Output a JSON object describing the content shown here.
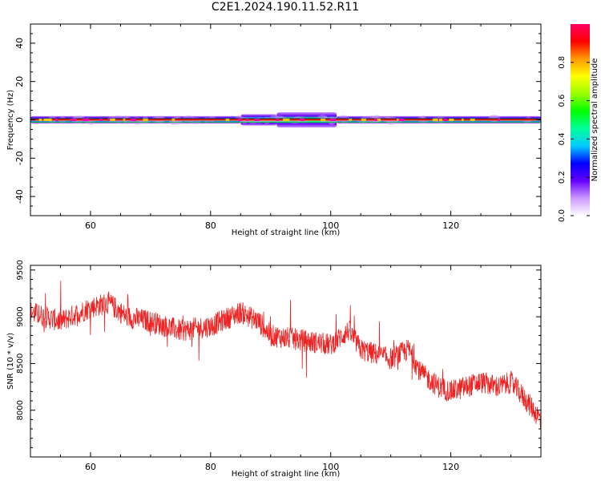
{
  "title": "C2E1.2024.190.11.52.R11",
  "chart_data": [
    {
      "type": "heatmap",
      "xlabel": "Height of straight line (km)",
      "ylabel": "Frequency (Hz)",
      "xlim": [
        50,
        135
      ],
      "ylim": [
        -50,
        50
      ],
      "xticks": [
        60,
        80,
        100,
        120
      ],
      "yticks": [
        -40,
        -20,
        0,
        20,
        40
      ],
      "colorbar": {
        "label": "Normalized spectral amplitude",
        "range": [
          0.0,
          1.0
        ],
        "ticks": [
          "0.0",
          "0.2",
          "0.4",
          "0.6",
          "0.8"
        ],
        "colors": [
          "#ffffff",
          "#cc99ff",
          "#6600ff",
          "#0000ff",
          "#00ccff",
          "#00ff99",
          "#00ff00",
          "#99ff00",
          "#ffff00",
          "#ff9900",
          "#ff0000",
          "#ff0066"
        ]
      },
      "band": {
        "center_hz": 0,
        "segments": [
          {
            "x": [
              50,
              85
            ],
            "halfwidth_hz": 2,
            "peak": 0.95
          },
          {
            "x": [
              85,
              91
            ],
            "halfwidth_hz": 3,
            "peak": 0.9
          },
          {
            "x": [
              91,
              101
            ],
            "halfwidth_hz": 4,
            "peak": 0.7
          },
          {
            "x": [
              101,
              135
            ],
            "halfwidth_hz": 2,
            "peak": 0.95
          }
        ]
      }
    },
    {
      "type": "line",
      "xlabel": "Height of straight line (km)",
      "ylabel": "SNR (10 * v/v)",
      "xlim": [
        50,
        135
      ],
      "ylim": [
        7500,
        9550
      ],
      "xticks": [
        60,
        80,
        100,
        120
      ],
      "yticks": [
        8000,
        8500,
        9000,
        9500
      ],
      "color": "#ee2222",
      "trend": {
        "x": [
          50,
          55,
          60,
          63,
          66,
          70,
          75,
          80,
          85,
          88,
          90,
          95,
          100,
          103,
          105,
          110,
          113,
          115,
          118,
          120,
          125,
          128,
          130,
          132,
          135
        ],
        "y": [
          9050,
          8950,
          9100,
          9150,
          9000,
          8950,
          8850,
          8900,
          9050,
          8950,
          8800,
          8750,
          8700,
          8850,
          8650,
          8550,
          8650,
          8400,
          8250,
          8200,
          8300,
          8250,
          8300,
          8150,
          7900
        ]
      },
      "noise_amplitude": 120
    }
  ]
}
